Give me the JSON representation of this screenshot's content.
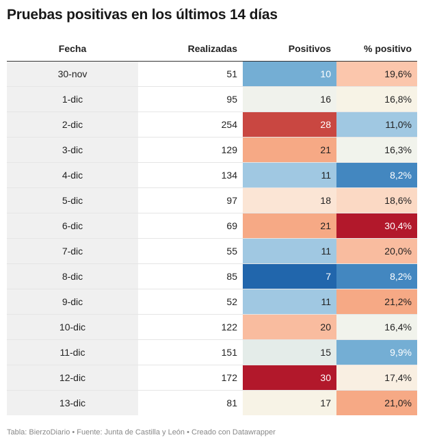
{
  "title": "Pruebas positivas en los últimos 14 días",
  "footer": "Tabla: BierzoDiario • Fuente: Junta de Castilla y León • Creado con Datawrapper",
  "chart_data": {
    "type": "table",
    "columns": [
      "Fecha",
      "Realizadas",
      "Positivos",
      "% positivo"
    ],
    "rows": [
      {
        "fecha": "30-nov",
        "realizadas": "51",
        "positivos": "10",
        "pct": "19,6%",
        "pos_color": "#74aed4",
        "pct_color": "#fbc6ac",
        "pos_text": "#ffffff",
        "pct_text": "#222222"
      },
      {
        "fecha": "1-dic",
        "realizadas": "95",
        "positivos": "16",
        "pct": "16,8%",
        "pos_color": "#f0f2ec",
        "pct_color": "#f7f3e6",
        "pos_text": "#222222",
        "pct_text": "#222222"
      },
      {
        "fecha": "2-dic",
        "realizadas": "254",
        "positivos": "28",
        "pct": "11,0%",
        "pos_color": "#c94741",
        "pct_color": "#a0c8e2",
        "pos_text": "#ffffff",
        "pct_text": "#222222"
      },
      {
        "fecha": "3-dic",
        "realizadas": "129",
        "positivos": "21",
        "pct": "16,3%",
        "pos_color": "#f6a985",
        "pct_color": "#f1f3ec",
        "pos_text": "#222222",
        "pct_text": "#222222"
      },
      {
        "fecha": "4-dic",
        "realizadas": "134",
        "positivos": "11",
        "pct": "8,2%",
        "pos_color": "#a0c8e2",
        "pct_color": "#4387c0",
        "pos_text": "#222222",
        "pct_text": "#ffffff"
      },
      {
        "fecha": "5-dic",
        "realizadas": "97",
        "positivos": "18",
        "pct": "18,6%",
        "pos_color": "#fbe5d5",
        "pct_color": "#fbd9c4",
        "pos_text": "#222222",
        "pct_text": "#222222"
      },
      {
        "fecha": "6-dic",
        "realizadas": "69",
        "positivos": "21",
        "pct": "30,4%",
        "pos_color": "#f6a985",
        "pct_color": "#b2182b",
        "pos_text": "#222222",
        "pct_text": "#ffffff"
      },
      {
        "fecha": "7-dic",
        "realizadas": "55",
        "positivos": "11",
        "pct": "20,0%",
        "pos_color": "#a0c8e2",
        "pct_color": "#f9bc9f",
        "pos_text": "#222222",
        "pct_text": "#222222"
      },
      {
        "fecha": "8-dic",
        "realizadas": "85",
        "positivos": "7",
        "pct": "8,2%",
        "pos_color": "#2166ac",
        "pct_color": "#4387c0",
        "pos_text": "#ffffff",
        "pct_text": "#ffffff"
      },
      {
        "fecha": "9-dic",
        "realizadas": "52",
        "positivos": "11",
        "pct": "21,2%",
        "pos_color": "#a0c8e2",
        "pct_color": "#f6a985",
        "pos_text": "#222222",
        "pct_text": "#222222"
      },
      {
        "fecha": "10-dic",
        "realizadas": "122",
        "positivos": "20",
        "pct": "16,4%",
        "pos_color": "#f9bc9f",
        "pct_color": "#f1f3ec",
        "pos_text": "#222222",
        "pct_text": "#222222"
      },
      {
        "fecha": "11-dic",
        "realizadas": "151",
        "positivos": "15",
        "pct": "9,9%",
        "pos_color": "#e4ece9",
        "pct_color": "#74aed4",
        "pos_text": "#222222",
        "pct_text": "#ffffff"
      },
      {
        "fecha": "12-dic",
        "realizadas": "172",
        "positivos": "30",
        "pct": "17,4%",
        "pos_color": "#b2182b",
        "pct_color": "#f9efe2",
        "pos_text": "#ffffff",
        "pct_text": "#222222"
      },
      {
        "fecha": "13-dic",
        "realizadas": "81",
        "positivos": "17",
        "pct": "21,0%",
        "pos_color": "#f7f3e6",
        "pct_color": "#f6a985",
        "pos_text": "#222222",
        "pct_text": "#222222"
      }
    ]
  }
}
